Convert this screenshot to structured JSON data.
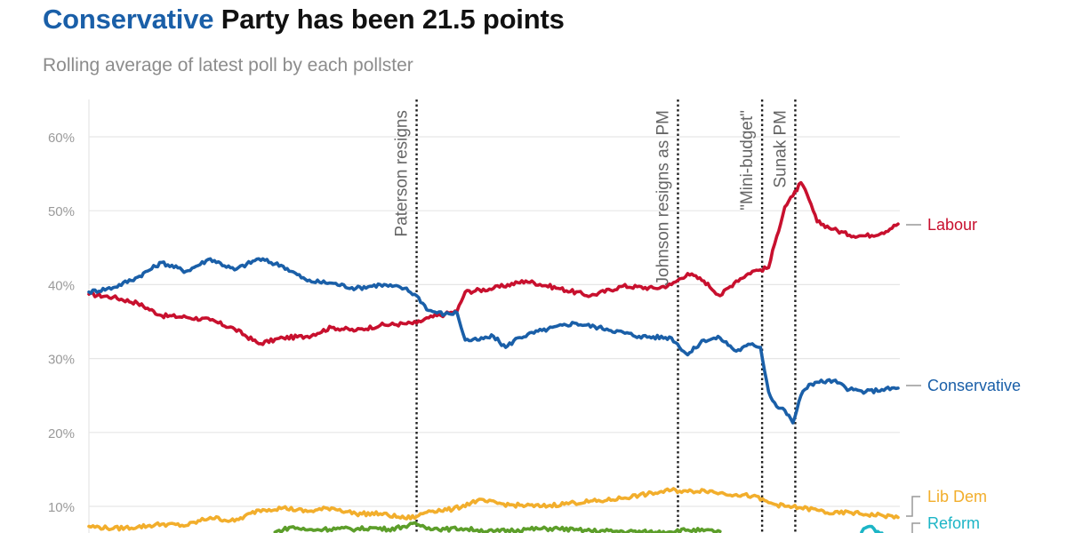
{
  "header": {
    "title_highlight": "Conservative",
    "title_rest": " Party has been 21.5 points",
    "subtitle": "Rolling average of latest poll by each pollster"
  },
  "colors": {
    "conservative": "#1a5fa8",
    "labour": "#c8102e",
    "libdem": "#f2ae2c",
    "reform": "#1cb5c6",
    "green": "#5c9e2a",
    "grid": "#e6e6e6",
    "event_line": "#222222"
  },
  "chart_data": {
    "type": "line",
    "title": "Conservative Party has been 21.5 points",
    "subtitle": "Rolling average of latest poll by each pollster",
    "xlabel": "",
    "ylabel": "",
    "x_range": [
      0,
      100
    ],
    "ylim": [
      7,
      66
    ],
    "yticks": [
      10,
      20,
      30,
      40,
      50,
      60
    ],
    "ytick_labels": [
      "10%",
      "20%",
      "30%",
      "40%",
      "50%",
      "60%"
    ],
    "grid": true,
    "events": [
      {
        "label": "Paterson resigns",
        "x": 40.5
      },
      {
        "label": "Johnson resigns as PM",
        "x": 72.8
      },
      {
        "label": "\"Mini-budget\"",
        "x": 83.2
      },
      {
        "label": "Sunak PM",
        "x": 87.3
      }
    ],
    "series": [
      {
        "name": "Labour",
        "label": "Labour",
        "color": "#c8102e",
        "x": [
          0,
          3,
          6,
          9,
          12,
          15,
          18,
          21,
          24,
          27,
          30,
          33,
          36,
          39,
          40.5,
          42,
          44,
          45.5,
          46.5,
          50,
          54,
          58,
          62,
          66,
          70,
          72,
          74,
          76,
          78,
          80,
          82,
          83,
          84,
          85,
          86,
          87,
          88,
          89,
          90,
          92,
          94,
          96,
          98,
          100
        ],
        "y": [
          38.7,
          38.3,
          37.5,
          35.8,
          35.6,
          35.2,
          34.0,
          32.0,
          32.8,
          33.0,
          34.2,
          33.8,
          34.5,
          34.7,
          34.8,
          35.5,
          36.0,
          36.4,
          39.0,
          39.5,
          40.5,
          39.5,
          38.5,
          39.8,
          39.5,
          40.0,
          41.5,
          40.5,
          38.5,
          40.5,
          41.8,
          42.0,
          42.3,
          46.5,
          50.5,
          52.0,
          53.8,
          51.5,
          48.5,
          47.5,
          46.7,
          46.6,
          47.0,
          48.2
        ]
      },
      {
        "name": "Conservative",
        "label": "Conservative",
        "color": "#1a5fa8",
        "x": [
          0,
          3,
          6,
          9,
          12,
          15,
          18,
          21,
          24,
          27,
          30,
          33,
          36,
          39,
          40.5,
          42,
          44,
          45.5,
          46.5,
          48,
          50,
          51.5,
          53,
          56,
          60,
          64,
          68,
          72,
          74,
          76,
          78,
          80,
          82,
          83,
          84,
          85,
          86,
          87,
          88,
          89,
          90,
          92,
          94,
          96,
          98,
          100
        ],
        "y": [
          39.0,
          39.6,
          41.0,
          43.0,
          41.8,
          43.5,
          42.0,
          43.5,
          42.5,
          40.5,
          40.2,
          39.5,
          40.0,
          39.5,
          38.5,
          36.5,
          36.0,
          36.2,
          32.5,
          32.5,
          33.0,
          31.5,
          32.8,
          33.8,
          34.8,
          34.0,
          33.0,
          32.8,
          30.5,
          32.5,
          32.8,
          31.0,
          32.0,
          31.5,
          25.5,
          23.5,
          23.0,
          21.3,
          25.0,
          26.5,
          26.8,
          27.0,
          25.8,
          25.5,
          25.8,
          26.0
        ]
      },
      {
        "name": "Lib Dem",
        "label": "Lib Dem",
        "color": "#f2ae2c",
        "x": [
          0,
          3,
          6,
          9,
          12,
          15,
          18,
          21,
          24,
          27,
          30,
          33,
          36,
          39,
          40.5,
          42,
          45,
          48,
          52,
          56,
          60,
          64,
          68,
          70,
          72,
          74,
          76,
          78,
          80,
          82,
          84,
          86,
          88,
          90,
          92,
          94,
          96,
          98,
          100
        ],
        "y": [
          7.3,
          7.0,
          7.2,
          7.6,
          7.4,
          8.5,
          8.0,
          9.5,
          9.8,
          9.3,
          9.8,
          9.0,
          9.0,
          8.4,
          8.6,
          9.4,
          9.6,
          10.8,
          10.2,
          10.0,
          10.5,
          10.8,
          11.5,
          11.8,
          12.2,
          12.0,
          12.2,
          11.8,
          11.6,
          11.4,
          10.5,
          10.0,
          9.8,
          9.5,
          9.0,
          9.2,
          8.9,
          8.8,
          8.5
        ]
      },
      {
        "name": "Green",
        "label": "",
        "color": "#5c9e2a",
        "x": [
          23,
          25,
          27,
          29,
          31,
          33,
          35,
          37,
          39,
          40.5,
          42,
          44,
          46,
          48,
          50,
          54,
          58,
          60,
          62,
          66,
          70,
          74,
          76,
          78
        ],
        "y": [
          6.5,
          7.2,
          6.8,
          6.9,
          7.0,
          6.9,
          7.1,
          6.9,
          7.3,
          7.6,
          7.1,
          6.9,
          7.0,
          6.8,
          6.6,
          6.9,
          7.0,
          6.8,
          6.7,
          6.6,
          6.5,
          6.8,
          6.7,
          6.6
        ]
      },
      {
        "name": "Reform",
        "label": "Reform",
        "color": "#1cb5c6",
        "x": [
          95.5,
          96,
          96.5,
          97,
          97.5,
          98
        ],
        "y": [
          6.5,
          7.1,
          7.3,
          7.0,
          6.6,
          6.4
        ]
      }
    ]
  }
}
